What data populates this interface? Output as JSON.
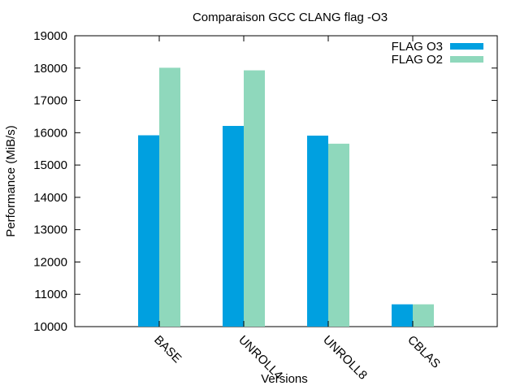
{
  "chart_data": {
    "type": "bar",
    "title": "Comparaison GCC  CLANG flag -O3",
    "xlabel": "Versions",
    "ylabel": "Performance (MiB/s)",
    "ylim": [
      10000,
      19000
    ],
    "yticks": [
      10000,
      11000,
      12000,
      13000,
      14000,
      15000,
      16000,
      17000,
      18000,
      19000
    ],
    "categories": [
      "BASE",
      "UNROLL4",
      "UNROLL8",
      "CBLAS"
    ],
    "series": [
      {
        "name": "FLAG O3",
        "color": "#00a0e0",
        "values": [
          15920,
          16210,
          15910,
          10690
        ]
      },
      {
        "name": "FLAG O2",
        "color": "#8fd8bc",
        "values": [
          18010,
          17930,
          15660,
          10690
        ]
      }
    ],
    "legend_position": "top-right",
    "grid": false
  }
}
